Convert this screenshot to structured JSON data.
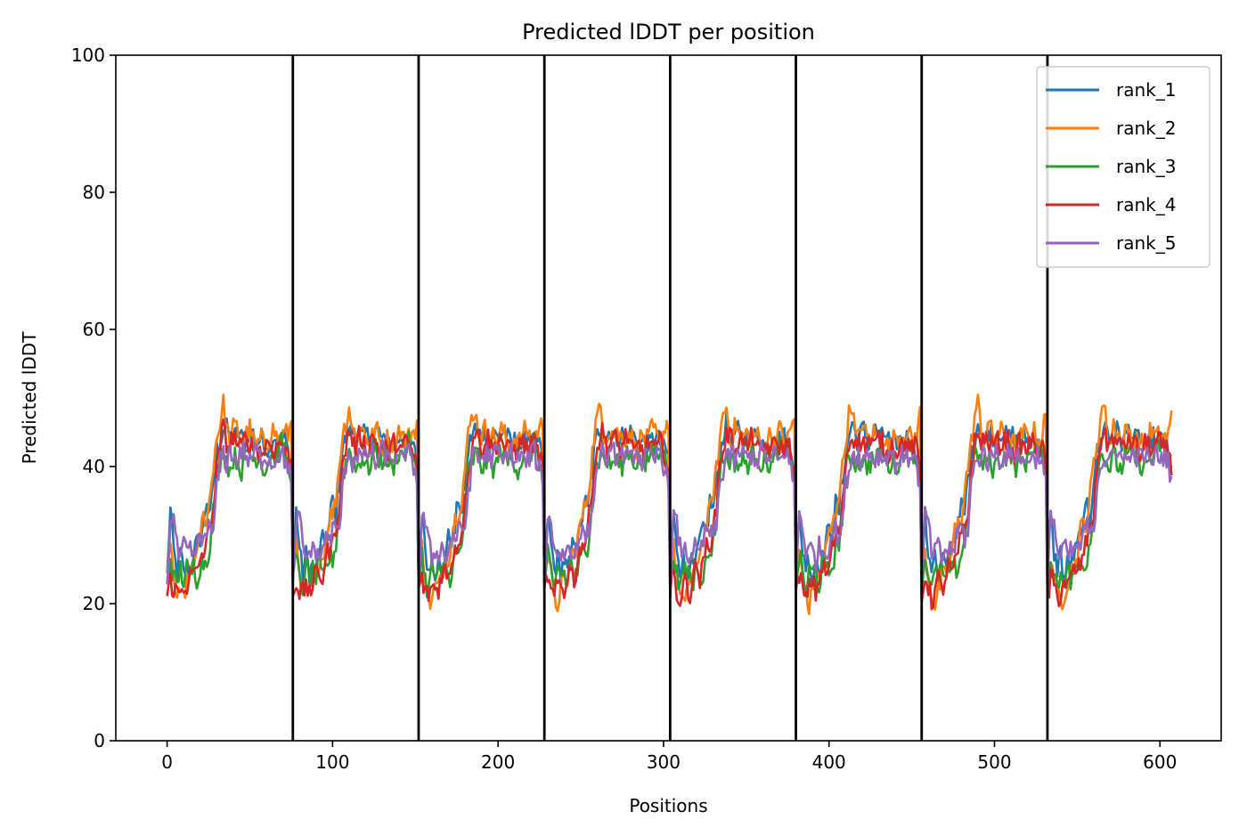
{
  "chart_data": {
    "type": "line",
    "title": "Predicted lDDT per position",
    "xlabel": "Positions",
    "ylabel": "Predicted lDDT",
    "xlim": [
      -31,
      637
    ],
    "ylim": [
      0,
      100
    ],
    "xticks": [
      0,
      100,
      200,
      300,
      400,
      500,
      600
    ],
    "yticks": [
      0,
      20,
      40,
      60,
      80,
      100
    ],
    "grid": false,
    "legend_position": "top-right",
    "chain_boundaries": [
      76,
      152,
      228,
      304,
      380,
      456,
      532
    ],
    "segment_length": 76,
    "total_positions": 608,
    "segment_profile": {
      "x_offset": [
        0,
        2,
        4,
        6,
        8,
        10,
        12,
        14,
        16,
        18,
        20,
        22,
        24,
        26,
        28,
        30,
        32,
        34,
        36,
        38,
        40,
        45,
        50,
        55,
        60,
        65,
        70,
        73,
        75
      ],
      "note_values_in_lddt": true
    },
    "series": [
      {
        "name": "rank_1",
        "color": "#1f77b4",
        "profile": [
          24,
          33,
          28,
          25,
          27,
          24,
          26,
          25,
          27,
          29,
          30,
          31,
          35,
          33,
          38,
          42,
          44,
          46,
          45,
          44,
          45,
          44,
          45,
          44,
          43,
          44,
          44,
          42,
          41
        ]
      },
      {
        "name": "rank_2",
        "color": "#ff7f0e",
        "profile": [
          25,
          28,
          24,
          21,
          20,
          22,
          23,
          24,
          26,
          27,
          30,
          32,
          33,
          36,
          40,
          44,
          47,
          49,
          45,
          44,
          46,
          44,
          45,
          43,
          44,
          45,
          44,
          45,
          47
        ]
      },
      {
        "name": "rank_3",
        "color": "#2ca02c",
        "profile": [
          23,
          27,
          24,
          22,
          25,
          24,
          25,
          23,
          26,
          24,
          25,
          26,
          27,
          29,
          33,
          39,
          41,
          42,
          41,
          40,
          41,
          40,
          42,
          41,
          40,
          42,
          43,
          41,
          39
        ]
      },
      {
        "name": "rank_4",
        "color": "#d62728",
        "profile": [
          21,
          24,
          22,
          21,
          22,
          23,
          22,
          24,
          25,
          24,
          26,
          28,
          29,
          31,
          34,
          40,
          43,
          45,
          44,
          43,
          44,
          43,
          44,
          42,
          43,
          43,
          43,
          42,
          40
        ]
      },
      {
        "name": "rank_5",
        "color": "#9467bd",
        "profile": [
          22,
          33,
          32,
          28,
          27,
          28,
          27,
          28,
          27,
          28,
          29,
          30,
          31,
          30,
          31,
          37,
          40,
          42,
          41,
          42,
          41,
          42,
          41,
          42,
          41,
          41,
          42,
          40,
          38
        ]
      }
    ]
  }
}
